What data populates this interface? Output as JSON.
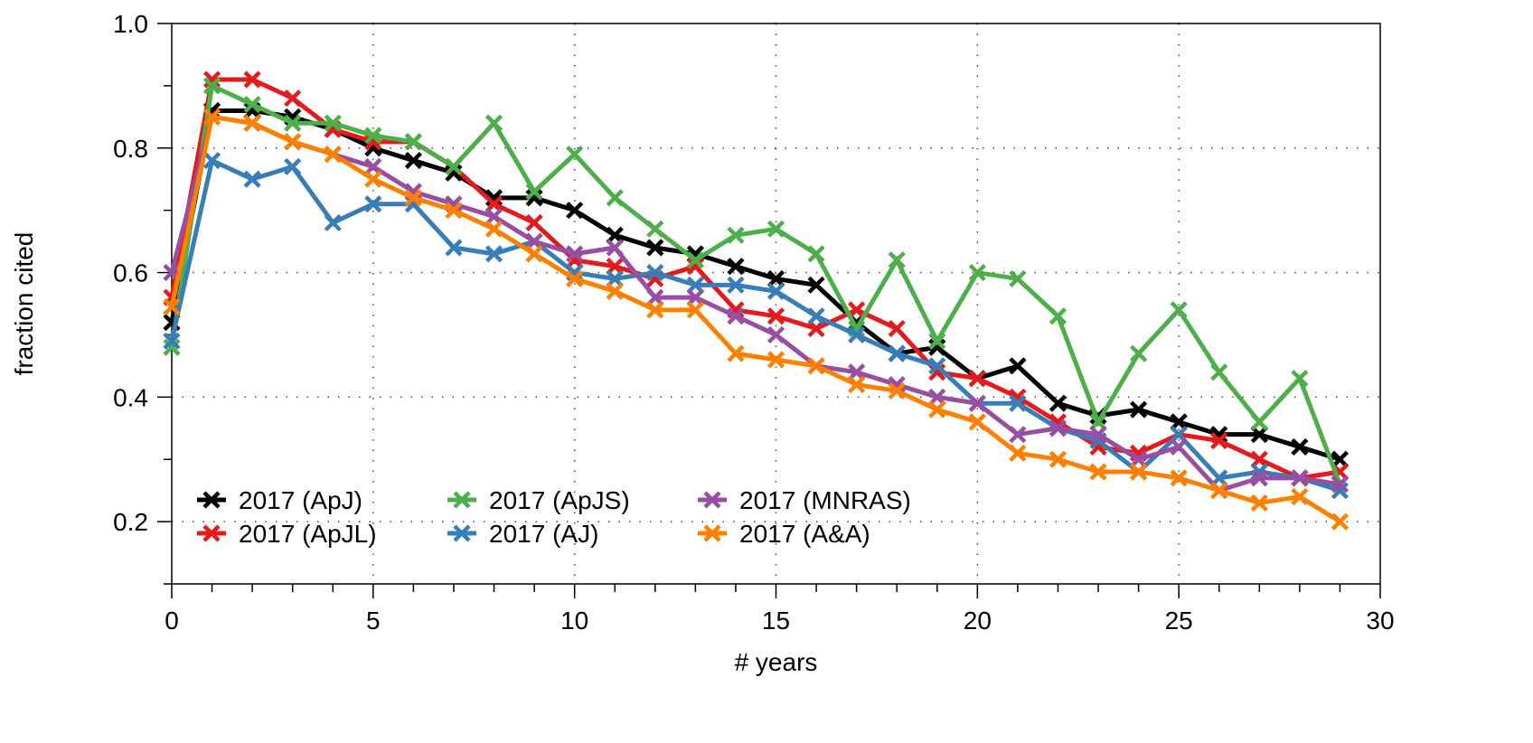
{
  "chart_data": {
    "type": "line",
    "title": "",
    "xlabel": "# years",
    "ylabel": "fraction cited",
    "xlim": [
      0,
      30
    ],
    "ylim": [
      0.1,
      1.0
    ],
    "xticks": [
      0,
      5,
      10,
      15,
      20,
      25,
      30
    ],
    "xtick_labels": [
      "0",
      "5",
      "10",
      "15",
      "20",
      "25",
      "30"
    ],
    "x_minor_step": 1,
    "yticks": [
      0.2,
      0.4,
      0.6,
      0.8,
      1.0
    ],
    "ytick_labels": [
      "0.2",
      "0.4",
      "0.6",
      "0.8",
      "1.0"
    ],
    "y_minor_step": 0.1,
    "grid": true,
    "grid_style": "dotted",
    "legend_position": "bottom-left",
    "legend_columns": 3,
    "marker": "x",
    "x": [
      0,
      1,
      2,
      3,
      4,
      5,
      6,
      7,
      8,
      9,
      10,
      11,
      12,
      13,
      14,
      15,
      16,
      17,
      18,
      19,
      20,
      21,
      22,
      23,
      24,
      25,
      26,
      27,
      28,
      29
    ],
    "series": [
      {
        "name": "2017 (ApJ)",
        "color": "#000000",
        "values": [
          0.52,
          0.86,
          0.86,
          0.85,
          0.83,
          0.8,
          0.78,
          0.76,
          0.72,
          0.72,
          0.7,
          0.66,
          0.64,
          0.63,
          0.61,
          0.59,
          0.58,
          0.52,
          0.47,
          0.48,
          0.43,
          0.45,
          0.39,
          0.37,
          0.38,
          0.36,
          0.34,
          0.34,
          0.32,
          0.3
        ]
      },
      {
        "name": "2017 (ApJL)",
        "color": "#e41a1c",
        "values": [
          0.56,
          0.91,
          0.91,
          0.88,
          0.83,
          0.81,
          0.81,
          0.77,
          0.71,
          0.68,
          0.62,
          0.61,
          0.59,
          0.61,
          0.54,
          0.53,
          0.51,
          0.54,
          0.51,
          0.44,
          0.43,
          0.4,
          0.36,
          0.32,
          0.31,
          0.34,
          0.33,
          0.3,
          0.27,
          0.28
        ]
      },
      {
        "name": "2017 (ApJS)",
        "color": "#4daf4a",
        "values": [
          0.48,
          0.9,
          0.87,
          0.84,
          0.84,
          0.82,
          0.81,
          0.77,
          0.84,
          0.73,
          0.79,
          0.72,
          0.67,
          0.62,
          0.66,
          0.67,
          0.63,
          0.51,
          0.62,
          0.49,
          0.6,
          0.59,
          0.53,
          0.36,
          0.47,
          0.54,
          0.44,
          0.36,
          0.43,
          0.26
        ]
      },
      {
        "name": "2017 (AJ)",
        "color": "#377eb8",
        "values": [
          0.49,
          0.78,
          0.75,
          0.77,
          0.68,
          0.71,
          0.71,
          0.64,
          0.63,
          0.65,
          0.6,
          0.59,
          0.6,
          0.58,
          0.58,
          0.57,
          0.53,
          0.5,
          0.47,
          0.45,
          0.39,
          0.39,
          0.35,
          0.33,
          0.28,
          0.34,
          0.27,
          0.28,
          0.27,
          0.25
        ]
      },
      {
        "name": "2017 (MNRAS)",
        "color": "#984ea3",
        "values": [
          0.6,
          0.85,
          0.84,
          0.81,
          0.79,
          0.77,
          0.73,
          0.71,
          0.69,
          0.65,
          0.63,
          0.64,
          0.56,
          0.56,
          0.53,
          0.5,
          0.45,
          0.44,
          0.42,
          0.4,
          0.39,
          0.34,
          0.35,
          0.34,
          0.3,
          0.32,
          0.25,
          0.27,
          0.27,
          0.26
        ]
      },
      {
        "name": "2017 (A&A)",
        "color": "#ff7f00",
        "values": [
          0.545,
          0.85,
          0.84,
          0.81,
          0.79,
          0.75,
          0.72,
          0.7,
          0.67,
          0.63,
          0.59,
          0.57,
          0.54,
          0.54,
          0.47,
          0.46,
          0.45,
          0.42,
          0.41,
          0.38,
          0.36,
          0.31,
          0.3,
          0.28,
          0.28,
          0.27,
          0.25,
          0.23,
          0.24,
          0.2
        ]
      }
    ],
    "draw_order": [
      0,
      1,
      2,
      3,
      4,
      5
    ],
    "legend_order": [
      0,
      2,
      4,
      1,
      3,
      5
    ]
  }
}
